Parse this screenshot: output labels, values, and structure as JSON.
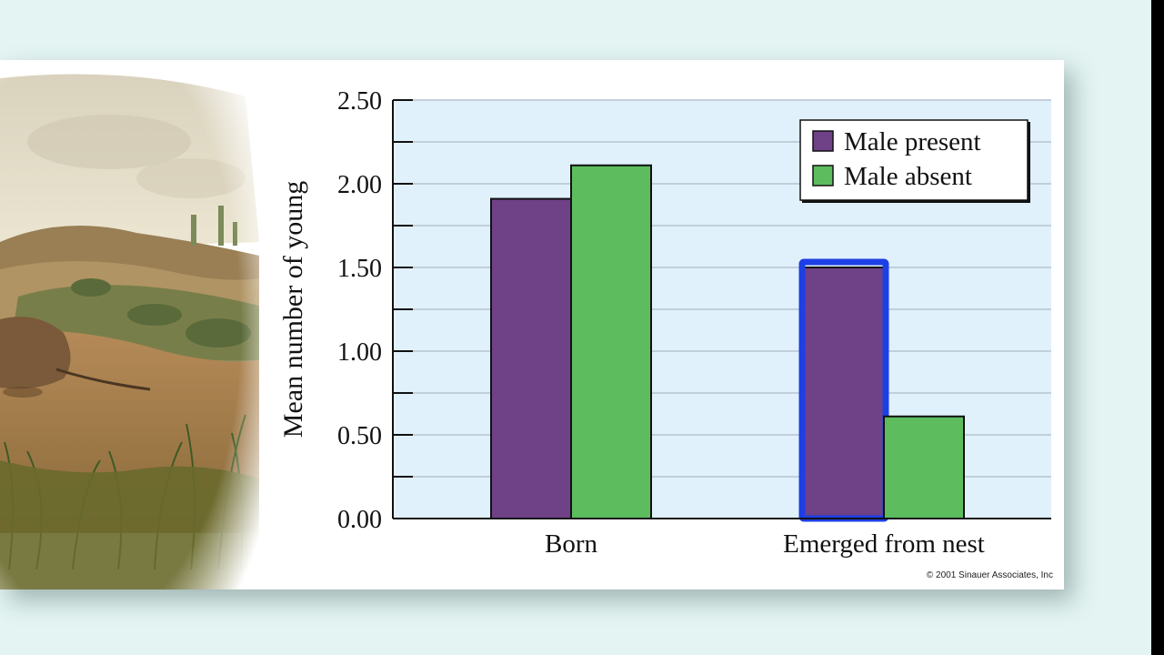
{
  "chart_data": {
    "type": "bar",
    "categories": [
      "Born",
      "Emerged from nest"
    ],
    "series": [
      {
        "name": "Male present",
        "values": [
          1.91,
          1.5
        ]
      },
      {
        "name": "Male absent",
        "values": [
          2.11,
          0.61
        ]
      }
    ],
    "ylabel": "Mean number of young",
    "xlabel": "",
    "ylim": [
      0,
      2.5
    ],
    "y_ticks": [
      "0.00",
      "0.50",
      "1.00",
      "1.50",
      "2.00",
      "2.50"
    ],
    "grid": true,
    "legend": "top-right",
    "highlight": {
      "category": "Emerged from nest",
      "series": "Male present"
    },
    "colors": {
      "male_present": "#6f4187",
      "male_absent": "#5cbc5e",
      "plot_bg": "#e1f1fb",
      "gridline": "#b5c4cf",
      "highlight": "#1d3fe6"
    }
  },
  "copyright": "© 2001 Sinauer Associates, Inc",
  "illustration": {
    "icon": "rodent-landscape-illustration"
  }
}
